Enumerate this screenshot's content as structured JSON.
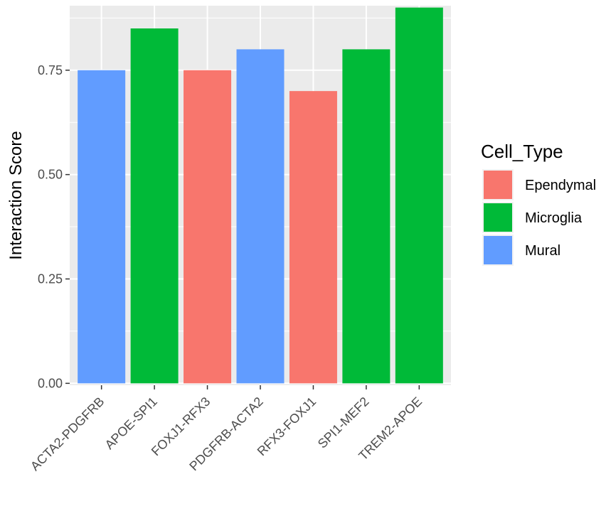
{
  "chart_data": {
    "type": "bar",
    "categories": [
      "ACTA2-PDGFRB",
      "APOE-SPI1",
      "FOXJ1-RFX3",
      "PDGFRB-ACTA2",
      "RFX3-FOXJ1",
      "SPI1-MEF2",
      "TREM2-APOE"
    ],
    "values": [
      0.75,
      0.85,
      0.75,
      0.8,
      0.7,
      0.8,
      0.9
    ],
    "fill_group": [
      "Mural",
      "Microglia",
      "Ependymal",
      "Mural",
      "Ependymal",
      "Microglia",
      "Microglia"
    ],
    "ylabel": "Interaction Score",
    "xlabel": "",
    "ylim": [
      -0.0045,
      0.9045
    ],
    "y_ticks": [
      0.0,
      0.25,
      0.5,
      0.75
    ],
    "y_tick_labels": [
      "0.00",
      "0.25",
      "0.50",
      "0.75"
    ],
    "legend": {
      "title": "Cell_Type",
      "placement": "right",
      "entries": [
        {
          "name": "Ependymal",
          "color": "#F8766D"
        },
        {
          "name": "Microglia",
          "color": "#00BA38"
        },
        {
          "name": "Mural",
          "color": "#619CFF"
        }
      ]
    },
    "grid": true,
    "panel_background": "#EBEBEB"
  }
}
